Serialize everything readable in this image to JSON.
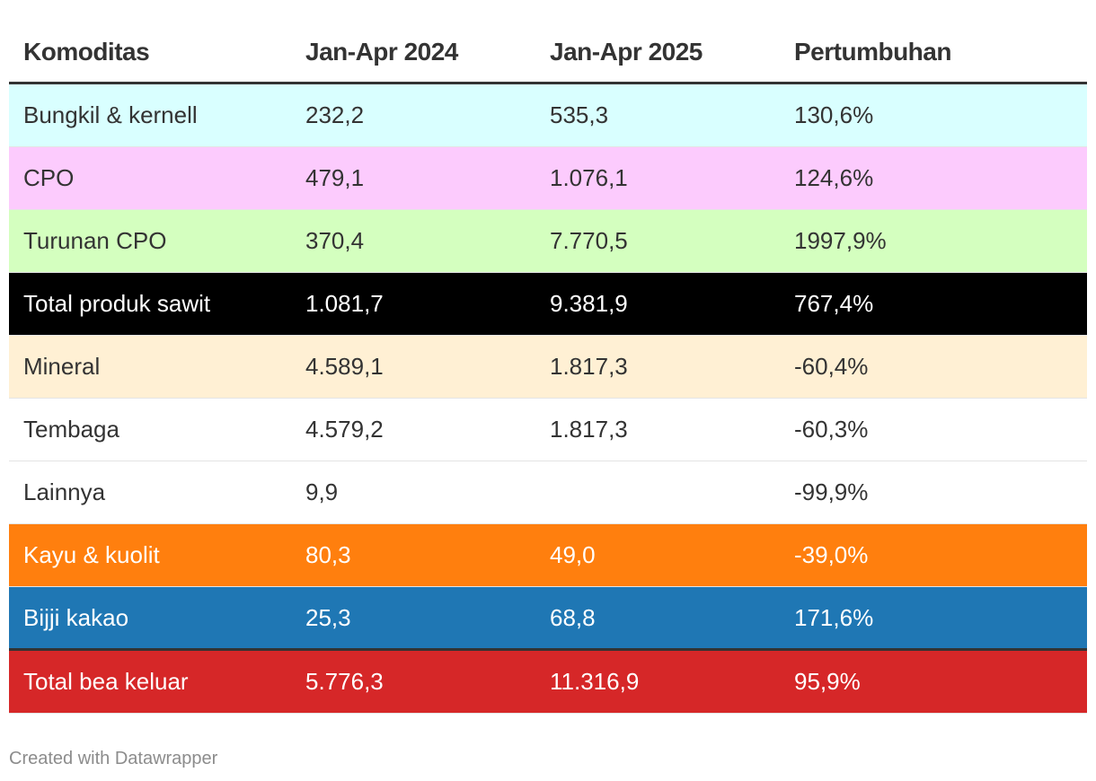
{
  "chart_data": {
    "type": "table",
    "columns": [
      "Komoditas",
      "Jan-Apr 2024",
      "Jan-Apr 2025",
      "Pertumbuhan"
    ],
    "rows": [
      {
        "cells": [
          "Bungkil & kernell",
          "232,2",
          "535,3",
          "130,6%"
        ],
        "bg": "#d9ffff",
        "fg": "#333333"
      },
      {
        "cells": [
          "CPO",
          "479,1",
          "1.076,1",
          "124,6%"
        ],
        "bg": "#fccbfd",
        "fg": "#333333"
      },
      {
        "cells": [
          "Turunan CPO",
          "370,4",
          "7.770,5",
          "1997,9%"
        ],
        "bg": "#d4ffbf",
        "fg": "#333333"
      },
      {
        "cells": [
          "Total produk sawit",
          "1.081,7",
          "9.381,9",
          "767,4%"
        ],
        "bg": "#000000",
        "fg": "#ffffff"
      },
      {
        "cells": [
          "Mineral",
          "4.589,1",
          "1.817,3",
          "-60,4%"
        ],
        "bg": "#fff0d4",
        "fg": "#333333"
      },
      {
        "cells": [
          "Tembaga",
          "4.579,2",
          "1.817,3",
          "-60,3%"
        ],
        "bg": "#ffffff",
        "fg": "#333333"
      },
      {
        "cells": [
          "Lainnya",
          "9,9",
          "",
          "-99,9%"
        ],
        "bg": "#ffffff",
        "fg": "#333333"
      },
      {
        "cells": [
          "Kayu & kuolit",
          "80,3",
          "49,0",
          "-39,0%"
        ],
        "bg": "#ff7f0e",
        "fg": "#ffffff"
      },
      {
        "cells": [
          "Bijji kakao",
          "25,3",
          "68,8",
          "171,6%"
        ],
        "bg": "#1f77b4",
        "fg": "#ffffff"
      },
      {
        "cells": [
          "Total bea keluar",
          "5.776,3",
          "11.316,9",
          "95,9%"
        ],
        "bg": "#d62728",
        "fg": "#ffffff"
      }
    ]
  },
  "footer": {
    "credit": "Created with Datawrapper"
  }
}
